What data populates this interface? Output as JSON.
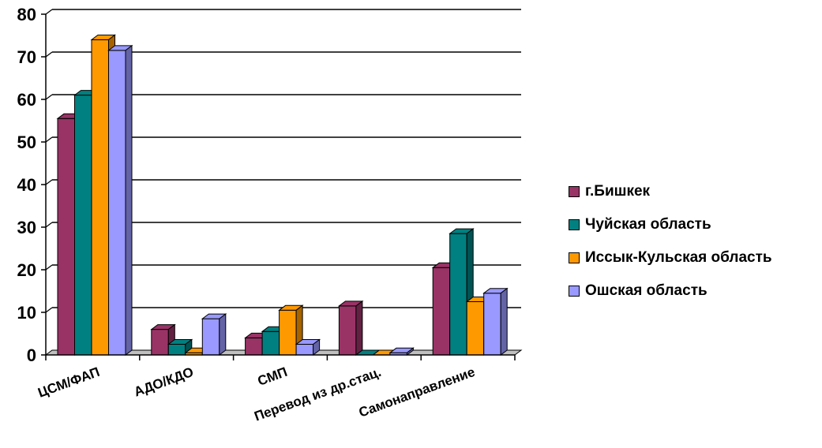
{
  "chart_data": {
    "type": "bar",
    "categories": [
      "ЦСМ/ФАП",
      "АДО/КДО",
      "СМП",
      "Перевод из др.стац.",
      "Самонаправление"
    ],
    "series": [
      {
        "name": "г.Бишкек",
        "color": "#993366",
        "values": [
          55.5,
          6,
          4,
          11.5,
          20.5
        ]
      },
      {
        "name": "Чуйская область",
        "color": "#008080",
        "values": [
          61,
          2.5,
          5.5,
          0,
          28.5
        ]
      },
      {
        "name": "Иссык-Кульская область",
        "color": "#FF9900",
        "values": [
          74,
          0.5,
          10.5,
          0,
          12.5
        ]
      },
      {
        "name": "Ошская область",
        "color": "#9999FF",
        "values": [
          71.5,
          8.5,
          2.5,
          0.5,
          14.5
        ]
      }
    ],
    "yticks": [
      "0",
      "10",
      "20",
      "30",
      "40",
      "50",
      "60",
      "70",
      "80"
    ],
    "ylim": [
      0,
      80
    ],
    "grid": true,
    "legend_position": "right"
  }
}
